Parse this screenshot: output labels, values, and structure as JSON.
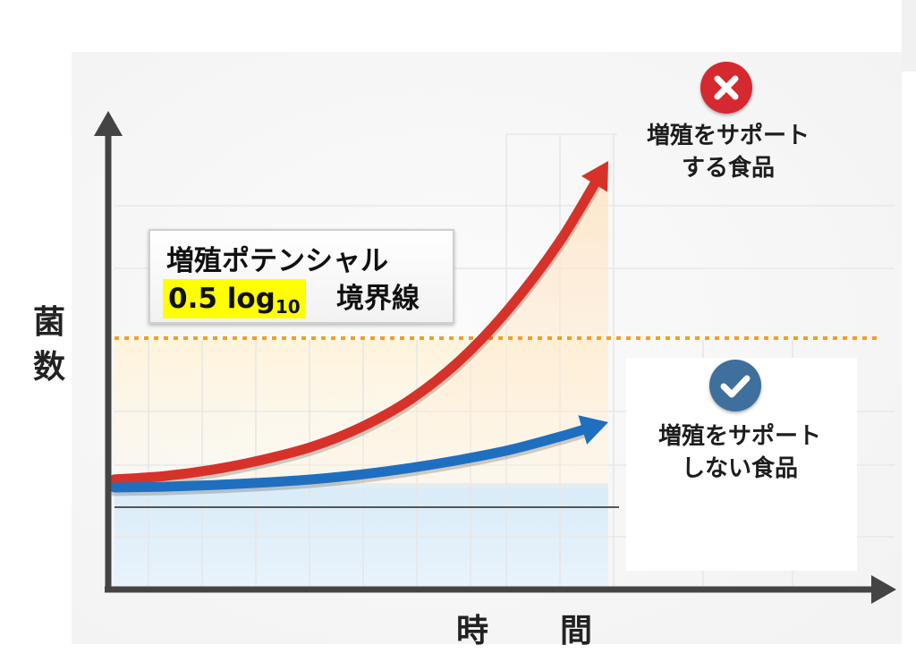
{
  "chart_data": {
    "type": "line",
    "xlabel": "時　間",
    "ylabel": "菌数",
    "threshold": {
      "label_title": "増殖ポテンシャル",
      "label_value": "0.5 log",
      "label_sub": "10",
      "label_suffix": "境界線",
      "line_style": "dashed",
      "color": "#f0a020"
    },
    "series": [
      {
        "name": "増殖をサポートする食品",
        "color": "#d7322a",
        "arrow": true,
        "x": [
          0,
          1,
          2,
          3,
          4,
          5,
          6,
          7,
          8,
          9,
          10
        ],
        "y": [
          0.05,
          0.07,
          0.11,
          0.17,
          0.25,
          0.37,
          0.54,
          0.78,
          1.1,
          1.5,
          2.0
        ]
      },
      {
        "name": "増殖をサポートしない食品",
        "color": "#1f6fc0",
        "arrow": true,
        "x": [
          0,
          1,
          2,
          3,
          4,
          5,
          6,
          7,
          8,
          9,
          10
        ],
        "y": [
          0.0,
          0.005,
          0.015,
          0.03,
          0.05,
          0.08,
          0.12,
          0.17,
          0.23,
          0.31,
          0.4
        ]
      }
    ],
    "grid": true,
    "legend_position": "right"
  },
  "callouts": {
    "top": {
      "icon": "x-mark-icon",
      "line1": "増殖をサポート",
      "line2": "する食品",
      "color": "#d6282f"
    },
    "bottom": {
      "icon": "check-icon",
      "line1": "増殖をサポート",
      "line2": "しない食品",
      "color": "#3f6f9c"
    }
  }
}
